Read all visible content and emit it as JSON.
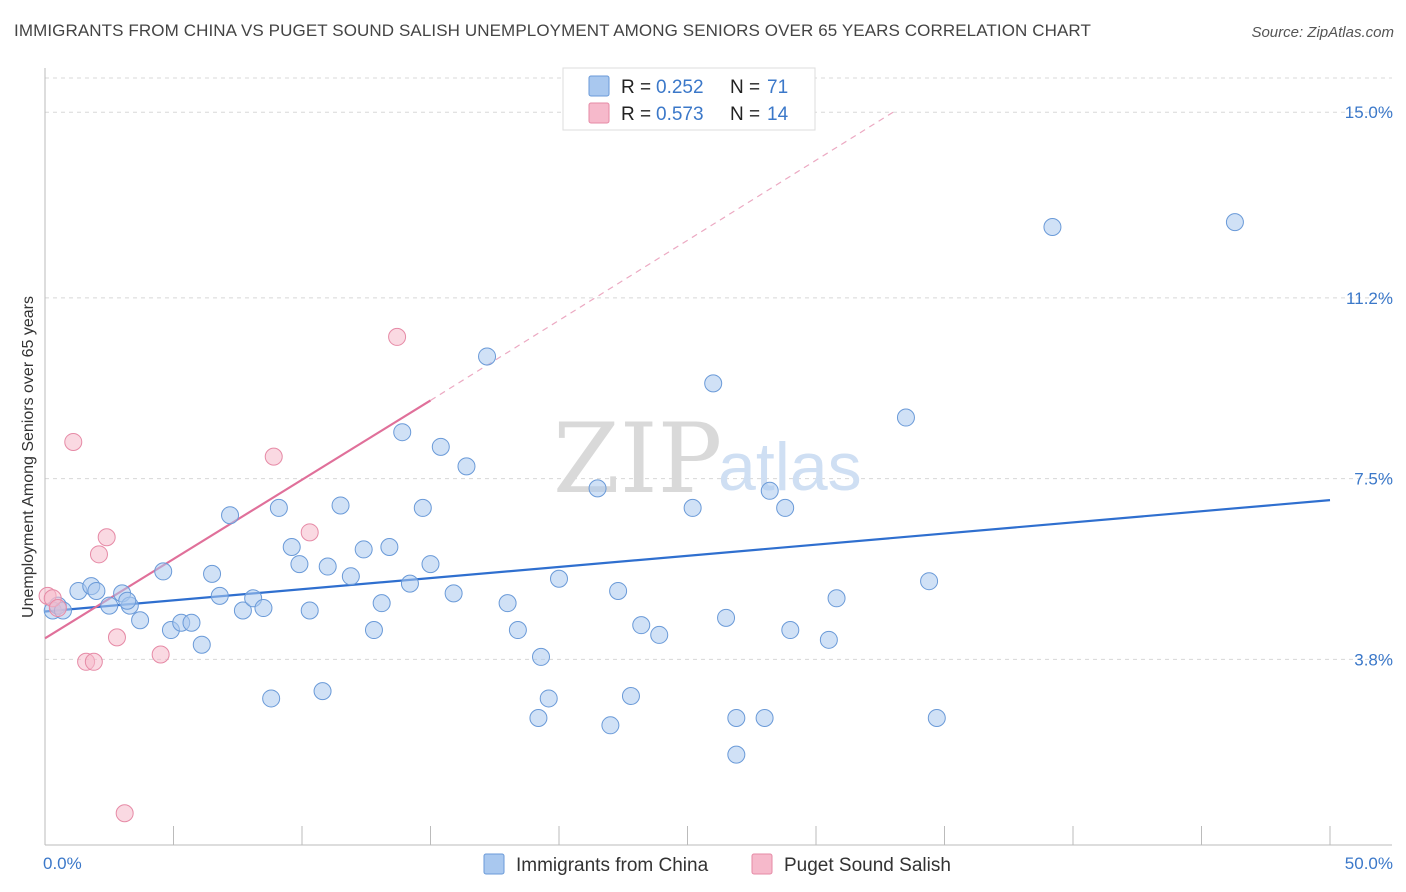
{
  "title": "IMMIGRANTS FROM CHINA VS PUGET SOUND SALISH UNEMPLOYMENT AMONG SENIORS OVER 65 YEARS CORRELATION CHART",
  "source": "Source: ZipAtlas.com",
  "watermark": {
    "zip": "ZIP",
    "atlas": "atlas"
  },
  "colors": {
    "blue_fill": "#a9c8ef",
    "blue_stroke": "#6a9ad8",
    "blue_line": "#2f6fcf",
    "pink_fill": "#f6b9cb",
    "pink_stroke": "#e68aa6",
    "pink_line": "#e0709a",
    "tick_label": "#3b78c9",
    "grid": "#d8d8d8"
  },
  "legend": {
    "r_label": "R =",
    "n_label": "N =",
    "rows": [
      {
        "r": "0.252",
        "n": "71",
        "color": "#a9c8ef"
      },
      {
        "r": "0.573",
        "n": "14",
        "color": "#f6b9cb"
      }
    ]
  },
  "chart_data": {
    "type": "scatter",
    "title": "IMMIGRANTS FROM CHINA VS PUGET SOUND SALISH UNEMPLOYMENT AMONG SENIORS OVER 65 YEARS CORRELATION CHART",
    "xlabel": "",
    "ylabel": "Unemployment Among Seniors over 65 years",
    "xlim": [
      0,
      50
    ],
    "ylim": [
      0,
      15.7
    ],
    "x_tick_labels": [
      "0.0%",
      "50.0%"
    ],
    "y_ticks": [
      3.8,
      7.5,
      11.2,
      15.0
    ],
    "y_tick_labels": [
      "3.8%",
      "7.5%",
      "11.2%",
      "15.0%"
    ],
    "grid": true,
    "legend_position": "top-center",
    "series": [
      {
        "name": "Immigrants from China",
        "color": "#a9c8ef",
        "r": 0.252,
        "n": 71,
        "trend": {
          "x": [
            0,
            50
          ],
          "y": [
            4.78,
            7.06
          ],
          "style": "solid"
        },
        "points": [
          [
            0.3,
            4.8
          ],
          [
            0.5,
            4.9
          ],
          [
            0.7,
            4.8
          ],
          [
            1.3,
            5.2
          ],
          [
            1.8,
            5.3
          ],
          [
            2.0,
            5.2
          ],
          [
            2.5,
            4.9
          ],
          [
            3.0,
            5.15
          ],
          [
            3.3,
            4.9
          ],
          [
            3.2,
            5.0
          ],
          [
            3.7,
            4.6
          ],
          [
            4.6,
            5.6
          ],
          [
            4.9,
            4.4
          ],
          [
            5.3,
            4.55
          ],
          [
            5.7,
            4.55
          ],
          [
            6.1,
            4.1
          ],
          [
            6.5,
            5.55
          ],
          [
            6.8,
            5.1
          ],
          [
            7.2,
            6.75
          ],
          [
            7.7,
            4.8
          ],
          [
            8.1,
            5.05
          ],
          [
            8.5,
            4.85
          ],
          [
            8.8,
            3.0
          ],
          [
            9.1,
            6.9
          ],
          [
            9.6,
            6.1
          ],
          [
            9.9,
            5.75
          ],
          [
            10.3,
            4.8
          ],
          [
            10.8,
            3.15
          ],
          [
            11.0,
            5.7
          ],
          [
            11.5,
            6.95
          ],
          [
            11.9,
            5.5
          ],
          [
            12.4,
            6.05
          ],
          [
            12.8,
            4.4
          ],
          [
            13.1,
            4.95
          ],
          [
            13.4,
            6.1
          ],
          [
            13.9,
            8.45
          ],
          [
            14.2,
            5.35
          ],
          [
            14.7,
            6.9
          ],
          [
            15.0,
            5.75
          ],
          [
            15.4,
            8.15
          ],
          [
            15.9,
            5.15
          ],
          [
            16.4,
            7.75
          ],
          [
            17.2,
            10.0
          ],
          [
            18.0,
            4.95
          ],
          [
            18.4,
            4.4
          ],
          [
            19.2,
            2.6
          ],
          [
            19.3,
            3.85
          ],
          [
            19.6,
            3.0
          ],
          [
            20.0,
            5.45
          ],
          [
            21.5,
            7.3
          ],
          [
            22.0,
            2.45
          ],
          [
            22.3,
            5.2
          ],
          [
            22.8,
            3.05
          ],
          [
            23.2,
            4.5
          ],
          [
            23.9,
            4.3
          ],
          [
            25.2,
            6.9
          ],
          [
            26.0,
            9.45
          ],
          [
            26.5,
            4.65
          ],
          [
            26.9,
            2.6
          ],
          [
            26.9,
            1.85
          ],
          [
            28.0,
            2.6
          ],
          [
            28.2,
            7.25
          ],
          [
            28.8,
            6.9
          ],
          [
            29.0,
            4.4
          ],
          [
            30.5,
            4.2
          ],
          [
            30.8,
            5.05
          ],
          [
            33.5,
            8.75
          ],
          [
            34.4,
            5.4
          ],
          [
            34.7,
            2.6
          ],
          [
            39.2,
            12.65
          ],
          [
            46.3,
            12.75
          ]
        ]
      },
      {
        "name": "Puget Sound Salish",
        "color": "#f6b9cb",
        "r": 0.573,
        "n": 14,
        "trend": {
          "x": [
            0,
            15
          ],
          "y": [
            4.23,
            9.1
          ],
          "style": "solid",
          "extended_to": [
            33,
            15.0
          ],
          "extended_style": "dashed"
        },
        "points": [
          [
            0.1,
            5.1
          ],
          [
            0.3,
            5.05
          ],
          [
            0.5,
            4.85
          ],
          [
            1.1,
            8.25
          ],
          [
            1.6,
            3.75
          ],
          [
            1.9,
            3.75
          ],
          [
            2.1,
            5.95
          ],
          [
            2.4,
            6.3
          ],
          [
            2.8,
            4.25
          ],
          [
            3.1,
            0.65
          ],
          [
            4.5,
            3.9
          ],
          [
            8.9,
            7.95
          ],
          [
            10.3,
            6.4
          ],
          [
            13.7,
            10.4
          ]
        ]
      }
    ],
    "bottom_legend": [
      "Immigrants from China",
      "Puget Sound Salish"
    ]
  }
}
